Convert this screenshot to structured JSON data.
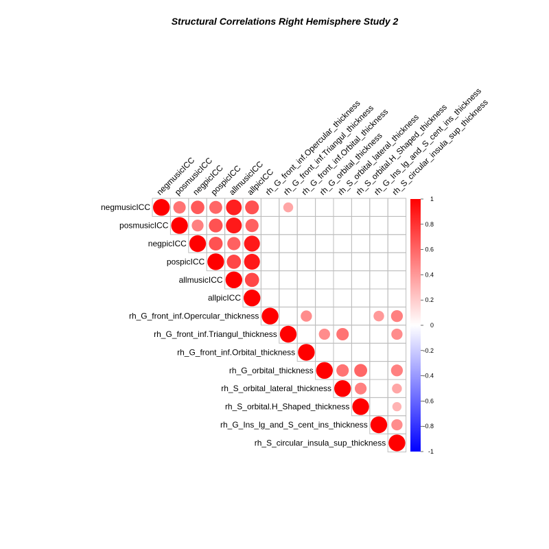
{
  "chart_data": {
    "type": "heatmap",
    "title": "Structural Correlations Right Hemisphere Study 2",
    "variables": [
      "negmusicICC",
      "posmusicICC",
      "negpicICC",
      "pospicICC",
      "allmusicICC",
      "allpicICC",
      "rh_G_front_inf.Opercular_thickness",
      "rh_G_front_inf.Triangul_thickness",
      "rh_G_front_inf.Orbital_thickness",
      "rh_G_orbital_thickness",
      "rh_S_orbital_lateral_thickness",
      "rh_S_orbital.H_Shaped_thickness",
      "rh_G_Ins_lg_and_S_cent_ins_thickness",
      "rh_S_circular_insula_sup_thickness"
    ],
    "matrix_layout": "upper triangle, circles sized and colored by correlation; blank cells are non-significant",
    "correlations": [
      {
        "row": 0,
        "col": 0,
        "r": 1.0
      },
      {
        "row": 0,
        "col": 1,
        "r": 0.55
      },
      {
        "row": 0,
        "col": 2,
        "r": 0.65
      },
      {
        "row": 0,
        "col": 3,
        "r": 0.6
      },
      {
        "row": 0,
        "col": 4,
        "r": 0.88
      },
      {
        "row": 0,
        "col": 5,
        "r": 0.68
      },
      {
        "row": 0,
        "col": 7,
        "r": 0.35
      },
      {
        "row": 1,
        "col": 1,
        "r": 1.0
      },
      {
        "row": 1,
        "col": 2,
        "r": 0.5
      },
      {
        "row": 1,
        "col": 3,
        "r": 0.68
      },
      {
        "row": 1,
        "col": 4,
        "r": 0.9
      },
      {
        "row": 1,
        "col": 5,
        "r": 0.62
      },
      {
        "row": 2,
        "col": 2,
        "r": 1.0
      },
      {
        "row": 2,
        "col": 3,
        "r": 0.68
      },
      {
        "row": 2,
        "col": 4,
        "r": 0.62
      },
      {
        "row": 2,
        "col": 5,
        "r": 0.9
      },
      {
        "row": 3,
        "col": 3,
        "r": 1.0
      },
      {
        "row": 3,
        "col": 4,
        "r": 0.72
      },
      {
        "row": 3,
        "col": 5,
        "r": 0.9
      },
      {
        "row": 4,
        "col": 4,
        "r": 1.0
      },
      {
        "row": 4,
        "col": 5,
        "r": 0.72
      },
      {
        "row": 5,
        "col": 5,
        "r": 1.0
      },
      {
        "row": 6,
        "col": 6,
        "r": 1.0
      },
      {
        "row": 6,
        "col": 8,
        "r": 0.45
      },
      {
        "row": 6,
        "col": 12,
        "r": 0.4
      },
      {
        "row": 6,
        "col": 13,
        "r": 0.5
      },
      {
        "row": 7,
        "col": 7,
        "r": 1.0
      },
      {
        "row": 7,
        "col": 9,
        "r": 0.45
      },
      {
        "row": 7,
        "col": 10,
        "r": 0.55
      },
      {
        "row": 7,
        "col": 13,
        "r": 0.45
      },
      {
        "row": 8,
        "col": 8,
        "r": 1.0
      },
      {
        "row": 9,
        "col": 9,
        "r": 1.0
      },
      {
        "row": 9,
        "col": 10,
        "r": 0.55
      },
      {
        "row": 9,
        "col": 11,
        "r": 0.6
      },
      {
        "row": 9,
        "col": 13,
        "r": 0.5
      },
      {
        "row": 10,
        "col": 10,
        "r": 1.0
      },
      {
        "row": 10,
        "col": 11,
        "r": 0.5
      },
      {
        "row": 10,
        "col": 13,
        "r": 0.35
      },
      {
        "row": 11,
        "col": 11,
        "r": 1.0
      },
      {
        "row": 11,
        "col": 13,
        "r": 0.3
      },
      {
        "row": 12,
        "col": 12,
        "r": 1.0
      },
      {
        "row": 12,
        "col": 13,
        "r": 0.45
      },
      {
        "row": 13,
        "col": 13,
        "r": 1.0
      }
    ],
    "colorbar": {
      "range": [
        -1,
        1
      ],
      "ticks": [
        "1",
        "0.8",
        "0.6",
        "0.4",
        "0.2",
        "0",
        "-0.2",
        "-0.4",
        "-0.6",
        "-0.8",
        "-1"
      ],
      "colors": {
        "negative": "#0000ff",
        "zero": "#ffffff",
        "positive": "#ff0000"
      }
    }
  }
}
